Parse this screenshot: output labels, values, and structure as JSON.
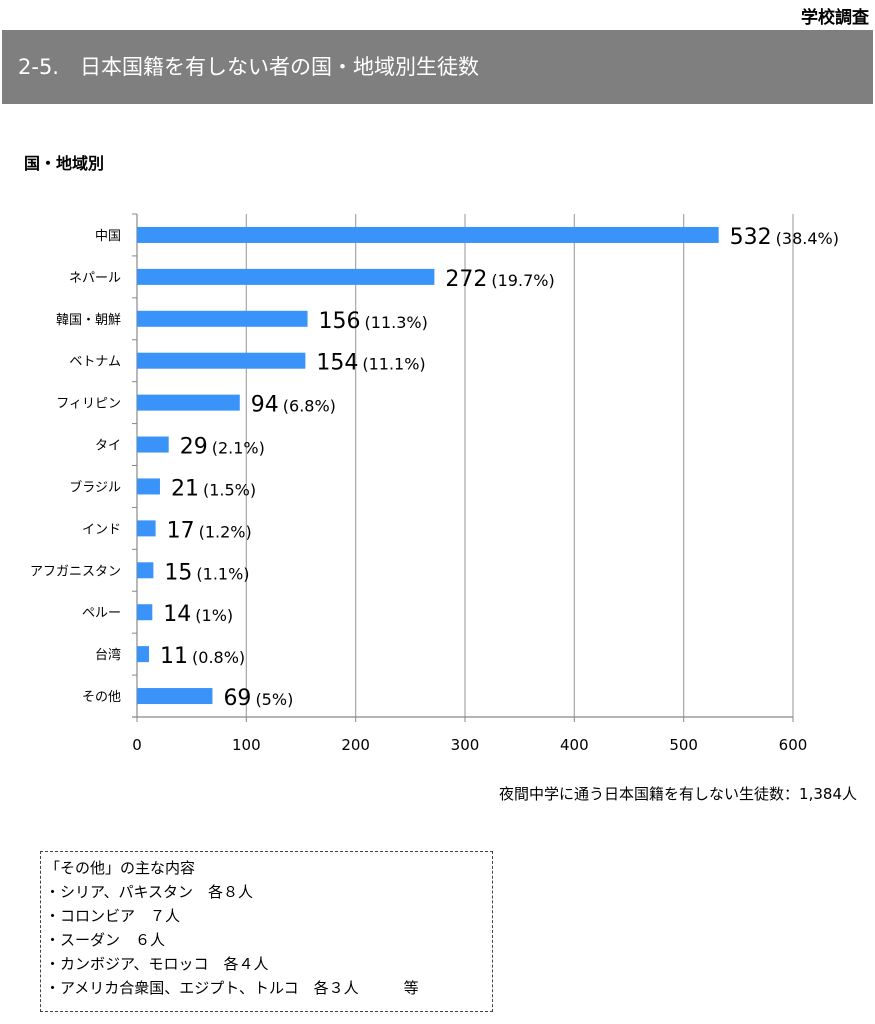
{
  "header": {
    "corner_label": "学校調査",
    "title": "2-5.　日本国籍を有しない者の国・地域別生徒数"
  },
  "subheading": "国・地域別",
  "footnote": "夜間中学に通う日本国籍を有しない生徒数：1,384人",
  "other_box": {
    "lines": [
      "「その他」の主な内容",
      "・シリア、パキスタン　各８人",
      "・コロンビア　７人",
      "・スーダン　６人",
      "・カンボジア、モロッコ　各４人",
      "・アメリカ合衆国、エジプト、トルコ　各３人　　　等"
    ]
  },
  "colors": {
    "bar": "#3a93f9",
    "grid": "#a6a6a6",
    "banner": "#7f7f7f"
  },
  "chart_data": {
    "type": "bar",
    "orientation": "horizontal",
    "title": "",
    "xlabel": "",
    "ylabel": "",
    "categories": [
      "中国",
      "ネパール",
      "韓国・朝鮮",
      "ベトナム",
      "フィリピン",
      "タイ",
      "ブラジル",
      "インド",
      "アフガニスタン",
      "ペルー",
      "台湾",
      "その他"
    ],
    "values": [
      532,
      272,
      156,
      154,
      94,
      29,
      21,
      17,
      15,
      14,
      11,
      69
    ],
    "percent_labels": [
      "(38.4%)",
      "(19.7%)",
      "(11.3%)",
      "(11.1%)",
      "(6.8%)",
      "(2.1%)",
      "(1.5%)",
      "(1.2%)",
      "(1.1%)",
      "(1%)",
      "(0.8%)",
      "(5%)"
    ],
    "xlim": [
      0,
      600
    ],
    "xticks": [
      0,
      100,
      200,
      300,
      400,
      500,
      600
    ],
    "grid": true,
    "legend": "none"
  }
}
